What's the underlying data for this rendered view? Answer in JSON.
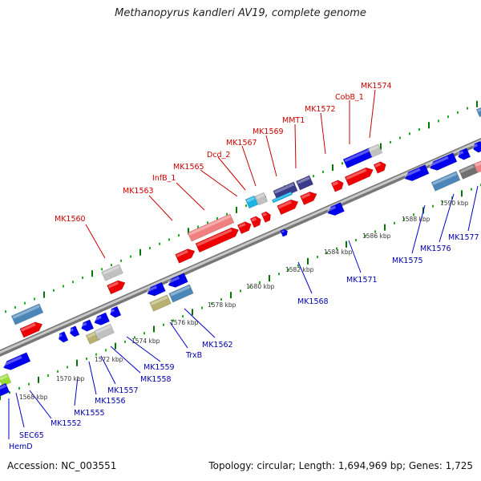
{
  "title": "Methanopyrus kandleri AV19, complete genome",
  "footer": {
    "accession": "Accession: NC_003551",
    "summary": "Topology: circular; Length: 1,694,969 bp; Genes: 1,725"
  },
  "kbp_ticks": [
    "1568 kbp",
    "1570 kbp",
    "1572 kbp",
    "1574 kbp",
    "1576 kbp",
    "1578 kbp",
    "1580 kbp",
    "1582 kbp",
    "1584 kbp",
    "1586 kbp",
    "1588 kbp",
    "1590 kbp"
  ],
  "forward_labels": [
    "MK1560",
    "MK1563",
    "InfB_1",
    "MK1565",
    "Dcd_2",
    "MK1567",
    "MK1569",
    "MMT1",
    "MK1572",
    "CobB_1",
    "MK1574"
  ],
  "reverse_labels": [
    "HemD",
    "SEC65",
    "MK1552",
    "MK1555",
    "MK1556",
    "MK1557",
    "MK1558",
    "MK1559",
    "TrxB",
    "MK1562",
    "MK1568",
    "MK1571",
    "MK1575",
    "MK1576",
    "MK1577"
  ],
  "colors": {
    "forward": "#ee0000",
    "reverse": "#0000ee",
    "backbone": "#999999",
    "ticks": "#009900",
    "steelblue": "#4a86b8",
    "pink": "#f08080",
    "gray": "#c0c0c0",
    "olive": "#b8b070",
    "cyan": "#19b3e6",
    "navy": "#3a3a8a",
    "darkgray": "#707070",
    "lime": "#99dd33"
  }
}
